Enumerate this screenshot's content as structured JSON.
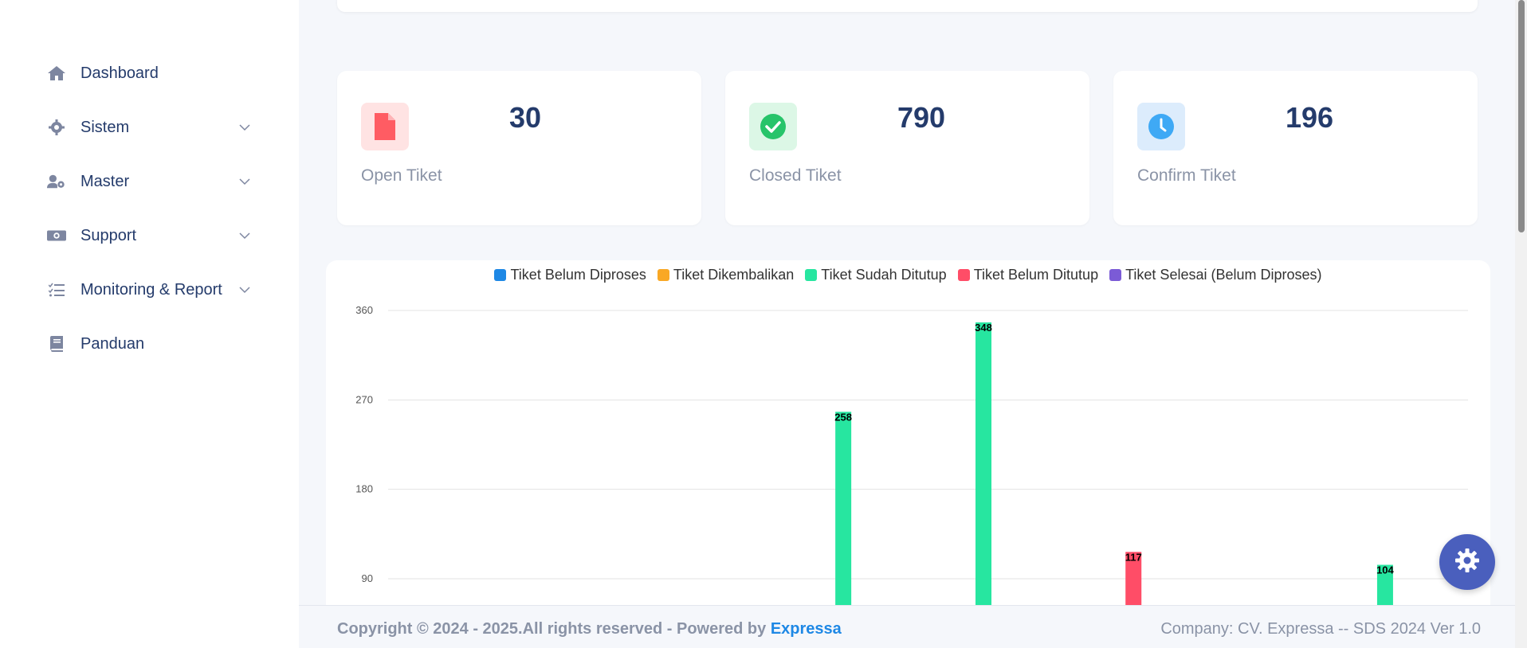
{
  "sidebar": {
    "items": [
      {
        "label": "Dashboard",
        "icon": "home-icon",
        "expandable": false
      },
      {
        "label": "Sistem",
        "icon": "gear-icon",
        "expandable": true
      },
      {
        "label": "Master",
        "icon": "user-cog-icon",
        "expandable": true
      },
      {
        "label": "Support",
        "icon": "money-icon",
        "expandable": true
      },
      {
        "label": "Monitoring & Report",
        "icon": "list-check-icon",
        "expandable": true
      },
      {
        "label": "Panduan",
        "icon": "book-icon",
        "expandable": false
      }
    ]
  },
  "stats": [
    {
      "value": "30",
      "label": "Open Tiket",
      "icon": "file-icon",
      "color": "#ff5c63",
      "bg": "#ffe3e3"
    },
    {
      "value": "790",
      "label": "Closed Tiket",
      "icon": "check-circle-icon",
      "color": "#27c46a",
      "bg": "#dcf7e6"
    },
    {
      "value": "196",
      "label": "Confirm Tiket",
      "icon": "clock-icon",
      "color": "#3fa9f5",
      "bg": "#dcecfc"
    }
  ],
  "legend": [
    {
      "name": "Tiket Belum Diproses",
      "color": "#1e88e5"
    },
    {
      "name": "Tiket Dikembalikan",
      "color": "#f9a825"
    },
    {
      "name": "Tiket Sudah Ditutup",
      "color": "#27e6a0"
    },
    {
      "name": "Tiket Belum Ditutup",
      "color": "#ff4d67"
    },
    {
      "name": "Tiket Selesai (Belum Diproses)",
      "color": "#7b5bd6"
    }
  ],
  "chart_data": {
    "type": "bar",
    "ylim": [
      0,
      360
    ],
    "yticks": [
      90,
      180,
      270,
      360
    ],
    "grid": true,
    "legend_position": "top",
    "visible_bars": [
      {
        "series": "Tiket Sudah Ditutup",
        "value": 258,
        "slot": 0.4215
      },
      {
        "series": "Tiket Sudah Ditutup",
        "value": 348,
        "slot": 0.5513
      },
      {
        "series": "Tiket Belum Ditutup",
        "value": 117,
        "slot": 0.6902
      },
      {
        "series": "Tiket Sudah Ditutup",
        "value": 104,
        "slot": 0.9232
      }
    ]
  },
  "footer": {
    "copyright": "Copyright © 2024 - 2025.All rights reserved - Powered by ",
    "brand": "Expressa",
    "company": "Company: CV. Expressa -- SDS 2024 Ver 1.0"
  },
  "fab": {
    "icon": "gear-icon"
  }
}
